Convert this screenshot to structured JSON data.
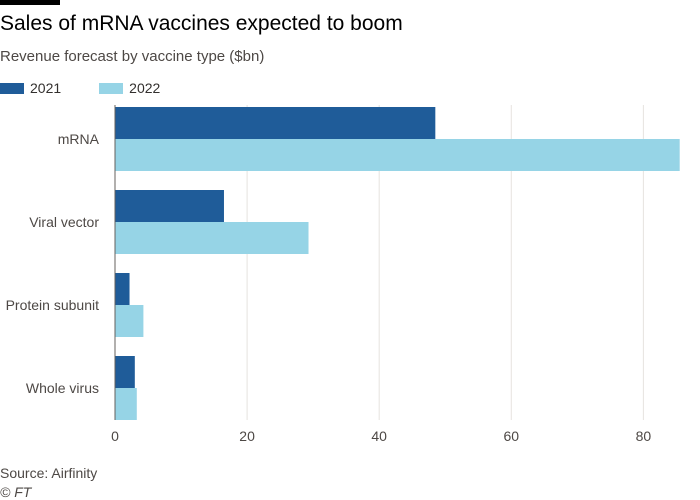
{
  "header": {
    "title": "Sales of mRNA vaccines expected to boom",
    "subtitle": "Revenue forecast by vaccine type ($bn)"
  },
  "legend": [
    {
      "label": "2021",
      "color": "#1f5c99"
    },
    {
      "label": "2022",
      "color": "#96d4e6"
    }
  ],
  "footer": {
    "source": "Source: Airfinity",
    "credit": "© FT"
  },
  "chart_data": {
    "type": "bar",
    "orientation": "horizontal",
    "title": "Sales of mRNA vaccines expected to boom",
    "subtitle": "Revenue forecast by vaccine type ($bn)",
    "categories": [
      "mRNA",
      "Viral vector",
      "Protein subunit",
      "Whole virus"
    ],
    "series": [
      {
        "name": "2021",
        "color": "#1f5c99",
        "values": [
          48.5,
          16.5,
          2.2,
          3.0
        ]
      },
      {
        "name": "2022",
        "color": "#96d4e6",
        "values": [
          85.5,
          29.3,
          4.3,
          3.3
        ]
      }
    ],
    "xlim": [
      0,
      86
    ],
    "xticks": [
      0,
      20,
      40,
      60,
      80
    ],
    "xlabel": "",
    "ylabel": "",
    "grid": "vertical",
    "legend_position": "top-left"
  }
}
